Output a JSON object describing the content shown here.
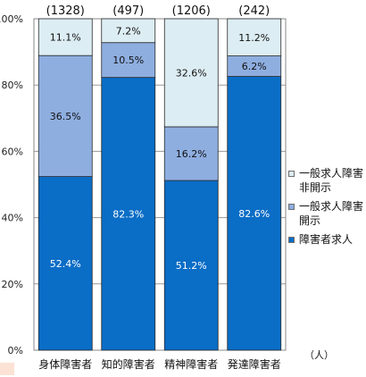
{
  "chart_data": {
    "type": "bar",
    "stacked": true,
    "categories": [
      "身体障害者",
      "知的障害者",
      "精神障害者",
      "発達障害者"
    ],
    "counts": [
      "(1328)",
      "(497)",
      "(1206)",
      "(242)"
    ],
    "y_ticks": [
      "0%",
      "20%",
      "40%",
      "60%",
      "80%",
      "100%"
    ],
    "ylim": [
      0,
      100
    ],
    "unit": "（人）",
    "series": [
      {
        "name": "障害者求人",
        "color": "#0a6dc6",
        "values": [
          52.4,
          82.3,
          51.2,
          82.6
        ],
        "labels": [
          "52.4%",
          "82.3%",
          "51.2%",
          "82.6%"
        ]
      },
      {
        "name": "一般求人障害開示",
        "color": "#8eaee0",
        "values": [
          36.5,
          10.5,
          16.2,
          6.2
        ],
        "labels": [
          "36.5%",
          "10.5%",
          "16.2%",
          "6.2%"
        ]
      },
      {
        "name": "一般求人障害非開示",
        "color": "#dcedf3",
        "values": [
          11.1,
          7.2,
          32.6,
          11.2
        ],
        "labels": [
          "11.1%",
          "7.2%",
          "32.6%",
          "11.2%"
        ]
      }
    ],
    "legend_order": [
      2,
      1,
      0
    ],
    "legend_position": "right",
    "grid": true
  }
}
